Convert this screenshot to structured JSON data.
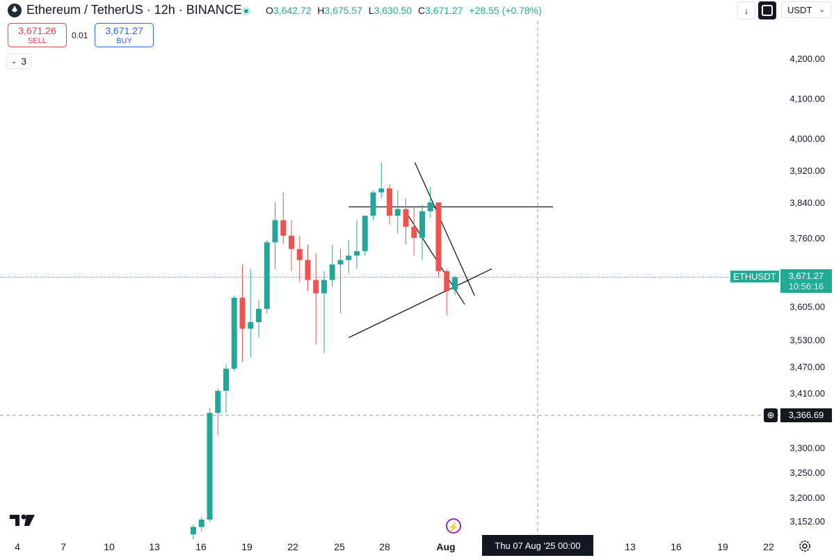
{
  "header": {
    "title": "Ethereum / TetherUS · 12h · BINANCE",
    "ohlc": [
      {
        "k": "O",
        "v": "3,642.72"
      },
      {
        "k": "H",
        "v": "3,675.57"
      },
      {
        "k": "L",
        "v": "3,630.50"
      },
      {
        "k": "C",
        "v": "3,671.27"
      }
    ],
    "change": "+28.55 (+0.78%)",
    "currency": "USDT"
  },
  "trade": {
    "sell_price": "3,671.26",
    "sell_label": "SELL",
    "spread": "0.01",
    "buy_price": "3,671.27",
    "buy_label": "BUY"
  },
  "indicators": {
    "collapsed_count": "3"
  },
  "price_axis": {
    "labels": [
      "4,200.00",
      "4,100.00",
      "4,000.00",
      "3,920.00",
      "3,840.00",
      "3,760.00",
      "3,605.00",
      "3,530.00",
      "3,470.00",
      "3,410.00",
      "3,300.00",
      "3,250.00",
      "3,200.00",
      "3,152.00"
    ]
  },
  "time_axis": {
    "labels": [
      "4",
      "7",
      "10",
      "13",
      "16",
      "19",
      "22",
      "25",
      "28",
      "Aug",
      "13",
      "16",
      "19",
      "22"
    ]
  },
  "tags": {
    "symbol": "ETHUSDT",
    "last_price": "3,671.27",
    "countdown": "10:56:16",
    "crosshair_price": "3,366.69",
    "crosshair_time": "Thu 07 Aug '25   00:00"
  },
  "colors": {
    "up": "#26a69a",
    "down": "#ef5350",
    "symbol_tag": "#22ab94",
    "crosshair_tag": "#131722"
  },
  "chart_data": {
    "type": "candlestick",
    "interval": "12h",
    "series": [
      {
        "name": "Ethereum / TetherUS",
        "candles": [
          {
            "o": 3125,
            "h": 3145,
            "l": 3115,
            "c": 3140
          },
          {
            "o": 3140,
            "h": 3160,
            "l": 3130,
            "c": 3155
          },
          {
            "o": 3155,
            "h": 3380,
            "l": 3150,
            "c": 3370
          },
          {
            "o": 3370,
            "h": 3420,
            "l": 3325,
            "c": 3415
          },
          {
            "o": 3415,
            "h": 3475,
            "l": 3370,
            "c": 3465
          },
          {
            "o": 3465,
            "h": 3630,
            "l": 3460,
            "c": 3625
          },
          {
            "o": 3625,
            "h": 3700,
            "l": 3480,
            "c": 3555
          },
          {
            "o": 3555,
            "h": 3690,
            "l": 3490,
            "c": 3570
          },
          {
            "o": 3570,
            "h": 3620,
            "l": 3535,
            "c": 3600
          },
          {
            "o": 3600,
            "h": 3755,
            "l": 3590,
            "c": 3750
          },
          {
            "o": 3750,
            "h": 3840,
            "l": 3690,
            "c": 3800
          },
          {
            "o": 3800,
            "h": 3865,
            "l": 3745,
            "c": 3765
          },
          {
            "o": 3765,
            "h": 3800,
            "l": 3685,
            "c": 3735
          },
          {
            "o": 3735,
            "h": 3765,
            "l": 3660,
            "c": 3710
          },
          {
            "o": 3710,
            "h": 3745,
            "l": 3640,
            "c": 3665
          },
          {
            "o": 3665,
            "h": 3725,
            "l": 3520,
            "c": 3635
          },
          {
            "o": 3635,
            "h": 3685,
            "l": 3500,
            "c": 3665
          },
          {
            "o": 3665,
            "h": 3745,
            "l": 3650,
            "c": 3700
          },
          {
            "o": 3700,
            "h": 3735,
            "l": 3590,
            "c": 3710
          },
          {
            "o": 3710,
            "h": 3755,
            "l": 3680,
            "c": 3720
          },
          {
            "o": 3720,
            "h": 3800,
            "l": 3690,
            "c": 3730
          },
          {
            "o": 3730,
            "h": 3810,
            "l": 3720,
            "c": 3810
          },
          {
            "o": 3810,
            "h": 3870,
            "l": 3800,
            "c": 3865
          },
          {
            "o": 3865,
            "h": 3940,
            "l": 3850,
            "c": 3875
          },
          {
            "o": 3875,
            "h": 3885,
            "l": 3790,
            "c": 3810
          },
          {
            "o": 3810,
            "h": 3870,
            "l": 3770,
            "c": 3825
          },
          {
            "o": 3825,
            "h": 3850,
            "l": 3745,
            "c": 3785
          },
          {
            "o": 3785,
            "h": 3830,
            "l": 3720,
            "c": 3760
          },
          {
            "o": 3760,
            "h": 3835,
            "l": 3710,
            "c": 3820
          },
          {
            "o": 3820,
            "h": 3880,
            "l": 3805,
            "c": 3840
          },
          {
            "o": 3840,
            "h": 3840,
            "l": 3670,
            "c": 3685
          },
          {
            "o": 3685,
            "h": 3690,
            "l": 3585,
            "c": 3640
          },
          {
            "o": 3642.72,
            "h": 3675.57,
            "l": 3630.5,
            "c": 3671.27
          }
        ]
      }
    ],
    "ylim": [
      3100,
      4250
    ],
    "trendlines": [
      {
        "from": [
          19,
          3830
        ],
        "to": [
          44,
          3830
        ]
      },
      {
        "from": [
          19,
          3535
        ],
        "to": [
          36.5,
          3690
        ]
      },
      {
        "from": [
          27.1,
          3940
        ],
        "to": [
          34.4,
          3630
        ]
      },
      {
        "from": [
          26.3,
          3810
        ],
        "to": [
          33.2,
          3610
        ]
      }
    ],
    "last_price_line": 3671.27,
    "crosshair": {
      "price": 3366.69,
      "time": "Thu 07 Aug '25 00:00"
    },
    "grid": false
  }
}
